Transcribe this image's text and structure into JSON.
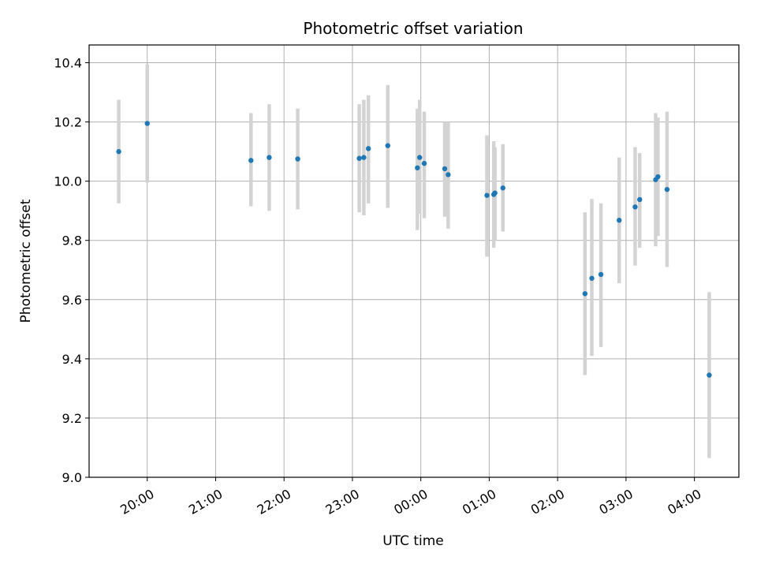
{
  "chart_data": {
    "type": "scatter",
    "title": "Photometric offset variation",
    "xlabel": "UTC time",
    "ylabel": "Photometric offset",
    "ylim": [
      9.0,
      10.46
    ],
    "xlim": [
      "19:09",
      "04:39"
    ],
    "grid": true,
    "x_ticks": [
      "20:00",
      "21:00",
      "22:00",
      "23:00",
      "00:00",
      "01:00",
      "02:00",
      "03:00",
      "04:00"
    ],
    "y_ticks": [
      "9.0",
      "9.2",
      "9.4",
      "9.6",
      "9.8",
      "10.0",
      "10.2",
      "10.4"
    ],
    "colors": {
      "point": "#1f77b4",
      "errorbar": "#d3d3d3",
      "grid": "#b0b0b0"
    },
    "points": [
      {
        "x": "19:35",
        "y": 10.1,
        "yerr_low": 9.925,
        "yerr_high": 10.275
      },
      {
        "x": "20:00",
        "y": 10.195,
        "yerr_low": 9.995,
        "yerr_high": 10.395
      },
      {
        "x": "21:31",
        "y": 10.07,
        "yerr_low": 9.915,
        "yerr_high": 10.23
      },
      {
        "x": "21:47",
        "y": 10.08,
        "yerr_low": 9.9,
        "yerr_high": 10.26
      },
      {
        "x": "22:12",
        "y": 10.075,
        "yerr_low": 9.905,
        "yerr_high": 10.245
      },
      {
        "x": "23:06",
        "y": 10.077,
        "yerr_low": 9.895,
        "yerr_high": 10.26
      },
      {
        "x": "23:10",
        "y": 10.08,
        "yerr_low": 9.885,
        "yerr_high": 10.275
      },
      {
        "x": "23:14",
        "y": 10.11,
        "yerr_low": 9.925,
        "yerr_high": 10.29
      },
      {
        "x": "23:31",
        "y": 10.12,
        "yerr_low": 9.91,
        "yerr_high": 10.325
      },
      {
        "x": "23:57",
        "y": 10.045,
        "yerr_low": 9.835,
        "yerr_high": 10.245
      },
      {
        "x": "23:59",
        "y": 10.08,
        "yerr_low": 9.89,
        "yerr_high": 10.275
      },
      {
        "x": "00:03",
        "y": 10.06,
        "yerr_low": 9.875,
        "yerr_high": 10.235
      },
      {
        "x": "00:21",
        "y": 10.042,
        "yerr_low": 9.88,
        "yerr_high": 10.2
      },
      {
        "x": "00:24",
        "y": 10.022,
        "yerr_low": 9.84,
        "yerr_high": 10.2
      },
      {
        "x": "00:58",
        "y": 9.952,
        "yerr_low": 9.745,
        "yerr_high": 10.155
      },
      {
        "x": "01:04",
        "y": 9.955,
        "yerr_low": 9.775,
        "yerr_high": 10.135
      },
      {
        "x": "01:05",
        "y": 9.96,
        "yerr_low": 9.8,
        "yerr_high": 10.115
      },
      {
        "x": "01:12",
        "y": 9.977,
        "yerr_low": 9.83,
        "yerr_high": 10.125
      },
      {
        "x": "02:24",
        "y": 9.62,
        "yerr_low": 9.345,
        "yerr_high": 9.895
      },
      {
        "x": "02:30",
        "y": 9.672,
        "yerr_low": 9.41,
        "yerr_high": 9.94
      },
      {
        "x": "02:38",
        "y": 9.685,
        "yerr_low": 9.44,
        "yerr_high": 9.925
      },
      {
        "x": "02:54",
        "y": 9.868,
        "yerr_low": 9.655,
        "yerr_high": 10.08
      },
      {
        "x": "03:08",
        "y": 9.913,
        "yerr_low": 9.715,
        "yerr_high": 10.115
      },
      {
        "x": "03:12",
        "y": 9.938,
        "yerr_low": 9.775,
        "yerr_high": 10.095
      },
      {
        "x": "03:26",
        "y": 10.005,
        "yerr_low": 9.78,
        "yerr_high": 10.23
      },
      {
        "x": "03:28",
        "y": 10.015,
        "yerr_low": 9.815,
        "yerr_high": 10.215
      },
      {
        "x": "03:36",
        "y": 9.972,
        "yerr_low": 9.71,
        "yerr_high": 10.235
      },
      {
        "x": "04:13",
        "y": 9.345,
        "yerr_low": 9.065,
        "yerr_high": 9.625
      }
    ]
  }
}
